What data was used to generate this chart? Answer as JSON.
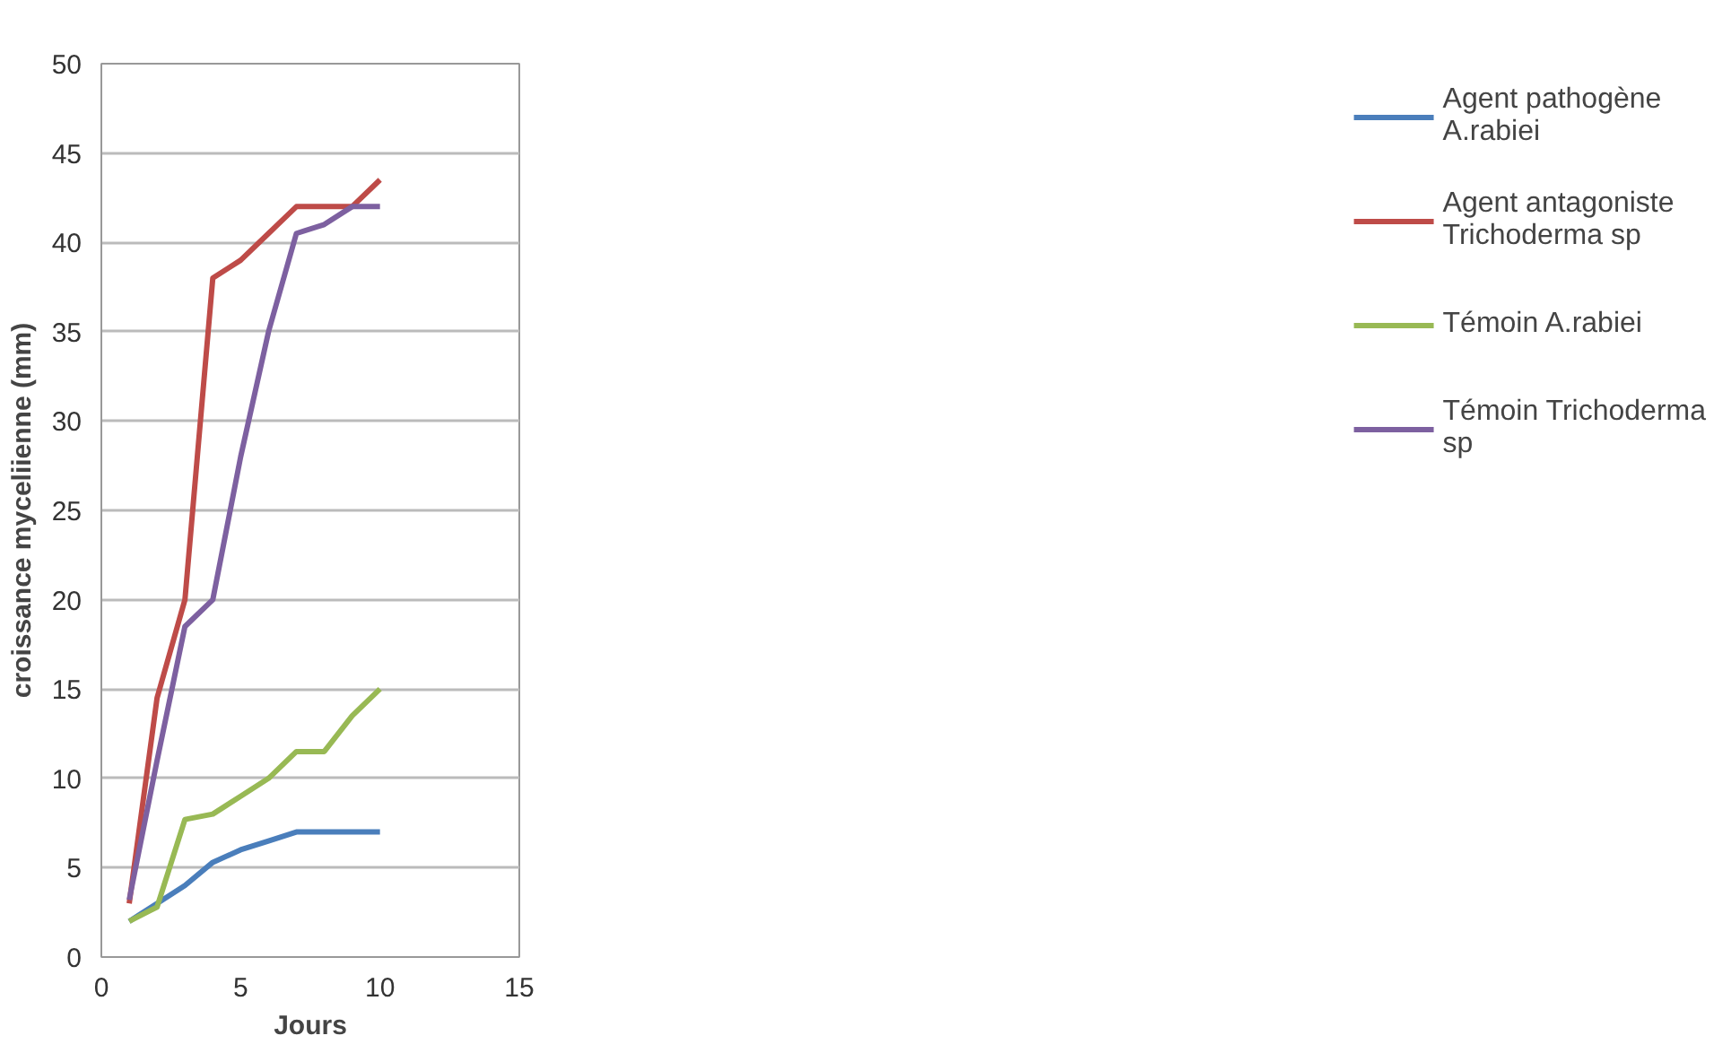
{
  "chart_data": {
    "type": "line",
    "xlabel": "Jours",
    "ylabel": "croissance myceliienne (mm)",
    "x": [
      1,
      2,
      3,
      4,
      5,
      6,
      7,
      8,
      9,
      10
    ],
    "series": [
      {
        "name": "Agent pathogène A.rabiei",
        "color": "#4a7ebb",
        "values": [
          2,
          3,
          4,
          5.3,
          6,
          6.5,
          7,
          7,
          7,
          7
        ]
      },
      {
        "name": "Agent antagoniste Trichoderma sp",
        "color": "#be4b48",
        "values": [
          3,
          14.5,
          20,
          38,
          39,
          40.5,
          42,
          42,
          42,
          43.5
        ]
      },
      {
        "name": "Témoin A.rabiei",
        "color": "#98b954",
        "values": [
          2,
          2.8,
          7.7,
          8,
          9,
          10,
          11.5,
          11.5,
          13.5,
          15
        ]
      },
      {
        "name": "Témoin Trichoderma sp",
        "color": "#7d60a0",
        "values": [
          3.2,
          11,
          18.5,
          20,
          28,
          35,
          40.5,
          41,
          42,
          42
        ]
      }
    ],
    "xlim": [
      0,
      15
    ],
    "xticks": [
      0,
      5,
      10,
      15
    ],
    "ylim": [
      0,
      50
    ],
    "yticks": [
      0,
      5,
      10,
      15,
      20,
      25,
      30,
      35,
      40,
      45,
      50
    ],
    "grid": "y",
    "legend": "right",
    "marker": "none",
    "line_style": "solid"
  }
}
